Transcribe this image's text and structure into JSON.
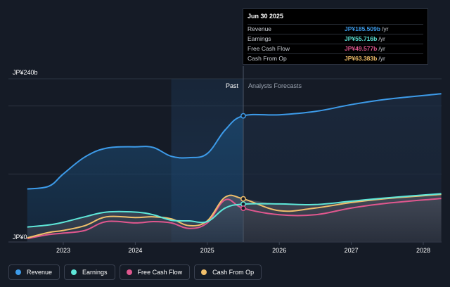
{
  "chart_data": {
    "type": "area",
    "y_axis": {
      "top_label": "JP¥240b",
      "bottom_label": "JP¥0",
      "ylim": [
        0,
        240
      ]
    },
    "x_axis": {
      "ticks": [
        "2023",
        "2024",
        "2025",
        "2026",
        "2027",
        "2028"
      ],
      "xlim": [
        2022.5,
        2028.25
      ]
    },
    "regions": {
      "past_label": "Past",
      "forecast_label": "Analysts Forecasts",
      "divider_x": 2025.5,
      "shaded_from": 2024.5
    },
    "series": [
      {
        "name": "Revenue",
        "color": "#3d9be9",
        "points": [
          [
            2022.5,
            78
          ],
          [
            2022.8,
            82
          ],
          [
            2023.0,
            100
          ],
          [
            2023.3,
            125
          ],
          [
            2023.6,
            138
          ],
          [
            2024.0,
            140
          ],
          [
            2024.25,
            139
          ],
          [
            2024.5,
            126
          ],
          [
            2024.75,
            124
          ],
          [
            2025.0,
            130
          ],
          [
            2025.25,
            165
          ],
          [
            2025.5,
            185.5
          ],
          [
            2026.0,
            187
          ],
          [
            2026.5,
            192
          ],
          [
            2027.0,
            202
          ],
          [
            2027.5,
            210
          ],
          [
            2028.25,
            218
          ]
        ]
      },
      {
        "name": "Earnings",
        "color": "#5ee7d9",
        "points": [
          [
            2022.5,
            22
          ],
          [
            2022.8,
            25
          ],
          [
            2023.0,
            29
          ],
          [
            2023.3,
            37
          ],
          [
            2023.6,
            44
          ],
          [
            2024.0,
            44
          ],
          [
            2024.25,
            40
          ],
          [
            2024.5,
            32
          ],
          [
            2024.75,
            31
          ],
          [
            2025.0,
            30
          ],
          [
            2025.25,
            50
          ],
          [
            2025.5,
            55.7
          ],
          [
            2026.0,
            56
          ],
          [
            2026.5,
            55
          ],
          [
            2027.0,
            60
          ],
          [
            2027.5,
            65
          ],
          [
            2028.25,
            71
          ]
        ]
      },
      {
        "name": "Free Cash Flow",
        "color": "#e0578e",
        "points": [
          [
            2022.5,
            5
          ],
          [
            2022.8,
            11
          ],
          [
            2023.0,
            13
          ],
          [
            2023.3,
            17
          ],
          [
            2023.6,
            30
          ],
          [
            2024.0,
            28
          ],
          [
            2024.25,
            30
          ],
          [
            2024.5,
            28
          ],
          [
            2024.75,
            20
          ],
          [
            2025.0,
            28
          ],
          [
            2025.25,
            62
          ],
          [
            2025.5,
            49.6
          ],
          [
            2026.0,
            40
          ],
          [
            2026.5,
            40
          ],
          [
            2027.0,
            50
          ],
          [
            2027.5,
            57
          ],
          [
            2028.25,
            64
          ]
        ]
      },
      {
        "name": "Cash From Op",
        "color": "#f1bf6b",
        "points": [
          [
            2022.5,
            6
          ],
          [
            2022.8,
            14
          ],
          [
            2023.0,
            17
          ],
          [
            2023.3,
            24
          ],
          [
            2023.6,
            37
          ],
          [
            2024.0,
            36
          ],
          [
            2024.25,
            37
          ],
          [
            2024.5,
            34
          ],
          [
            2024.75,
            24
          ],
          [
            2025.0,
            31
          ],
          [
            2025.25,
            66
          ],
          [
            2025.5,
            63.4
          ],
          [
            2026.0,
            46
          ],
          [
            2026.5,
            50
          ],
          [
            2027.0,
            58
          ],
          [
            2027.5,
            64
          ],
          [
            2028.25,
            70
          ]
        ]
      }
    ]
  },
  "tooltip": {
    "date": "Jun 30 2025",
    "rows": [
      {
        "name": "Revenue",
        "value": "JP¥185.509b",
        "unit": "/yr",
        "color": "#3d9be9"
      },
      {
        "name": "Earnings",
        "value": "JP¥55.716b",
        "unit": "/yr",
        "color": "#5ee7d9"
      },
      {
        "name": "Free Cash Flow",
        "value": "JP¥49.577b",
        "unit": "/yr",
        "color": "#e0578e"
      },
      {
        "name": "Cash From Op",
        "value": "JP¥63.383b",
        "unit": "/yr",
        "color": "#f1bf6b"
      }
    ]
  },
  "legend": [
    {
      "name": "Revenue",
      "color": "#3d9be9"
    },
    {
      "name": "Earnings",
      "color": "#5ee7d9"
    },
    {
      "name": "Free Cash Flow",
      "color": "#e0578e"
    },
    {
      "name": "Cash From Op",
      "color": "#f1bf6b"
    }
  ]
}
